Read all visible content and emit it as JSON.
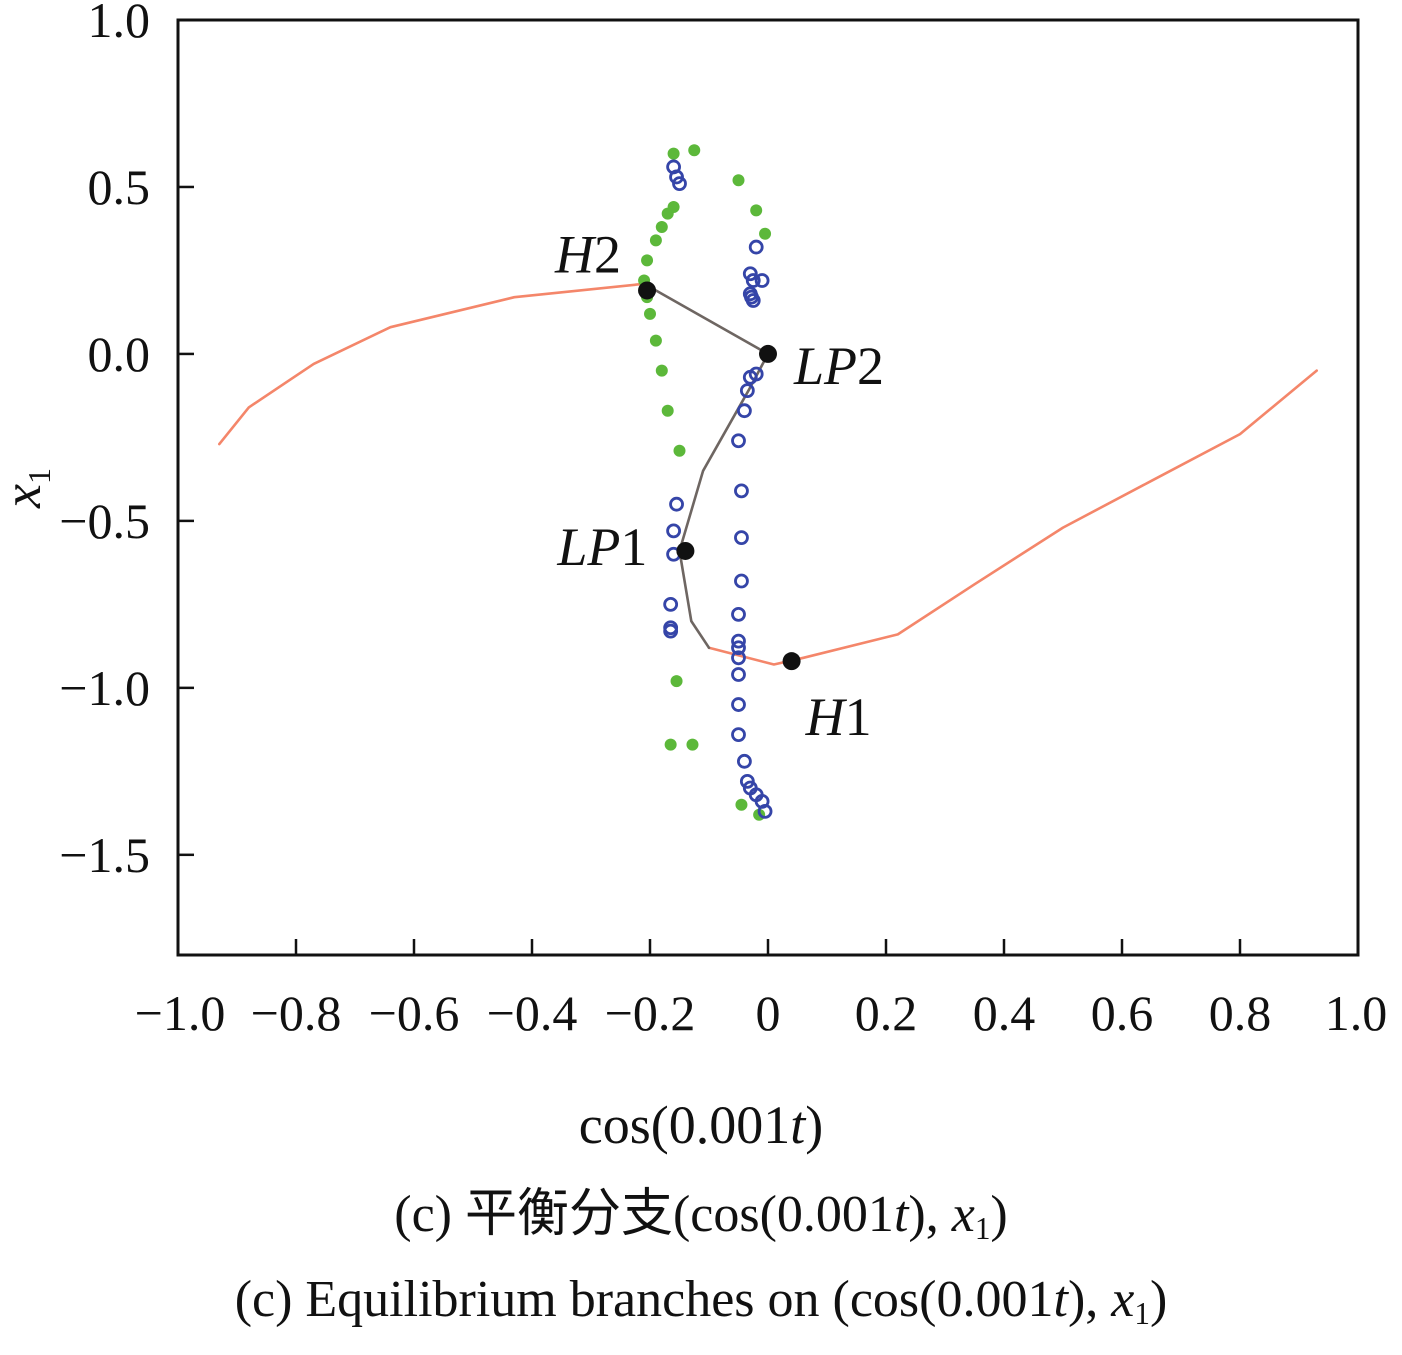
{
  "chart_data": {
    "type": "scatter",
    "xlabel": "cos(0.001t)",
    "ylabel": "x1",
    "xlim": [
      -1.0,
      1.0
    ],
    "ylim": [
      -1.8,
      1.0
    ],
    "x_ticks": [
      -1.0,
      -0.8,
      -0.6,
      -0.4,
      -0.2,
      0,
      0.2,
      0.4,
      0.6,
      0.8,
      1.0
    ],
    "x_tick_labels": [
      "−1.0",
      "−0.8",
      "−0.6",
      "−0.4",
      "−0.2",
      "0",
      "0.2",
      "0.4",
      "0.6",
      "0.8",
      "1.0"
    ],
    "y_ticks": [
      1.0,
      0.5,
      0.0,
      -0.5,
      -1.0,
      -1.5
    ],
    "y_tick_labels": [
      "1.0",
      "0.5",
      "0.0",
      "−0.5",
      "−1.0",
      "−1.5"
    ],
    "grid": false,
    "series": [
      {
        "style": "line",
        "color": "#f4866a",
        "x": [
          -0.93,
          -0.88,
          -0.77,
          -0.64,
          -0.43,
          -0.21
        ],
        "y": [
          -0.27,
          -0.16,
          -0.03,
          0.08,
          0.17,
          0.21
        ]
      },
      {
        "style": "line",
        "color": "#f4866a",
        "x": [
          -0.1,
          0.01,
          0.06,
          0.22,
          0.35,
          0.5,
          0.65,
          0.8,
          0.93
        ],
        "y": [
          -0.88,
          -0.93,
          -0.91,
          -0.84,
          -0.69,
          -0.52,
          -0.38,
          -0.24,
          -0.05
        ]
      },
      {
        "style": "line",
        "color": "#6e6662",
        "x": [
          -0.21,
          0.0,
          -0.03,
          -0.11,
          -0.15,
          -0.13,
          -0.1
        ],
        "y": [
          0.21,
          0.0,
          -0.1,
          -0.35,
          -0.59,
          -0.8,
          -0.88
        ]
      },
      {
        "style": "filled-dots",
        "color": "#5cb83a",
        "x": [
          -0.16,
          -0.125,
          -0.05,
          -0.02,
          -0.005,
          -0.16,
          -0.17,
          -0.18,
          -0.19,
          -0.205,
          -0.21,
          -0.205,
          -0.2,
          -0.19,
          -0.18,
          -0.17,
          -0.15,
          -0.14,
          -0.155,
          -0.165,
          -0.128,
          -0.045,
          -0.015
        ],
        "y": [
          0.6,
          0.61,
          0.52,
          0.43,
          0.36,
          0.44,
          0.42,
          0.38,
          0.34,
          0.28,
          0.22,
          0.17,
          0.12,
          0.04,
          -0.05,
          -0.17,
          -0.29,
          -0.59,
          -0.98,
          -1.17,
          -1.17,
          -1.35,
          -1.38
        ]
      },
      {
        "style": "open-circles",
        "color": "#3545a8",
        "x": [
          -0.16,
          -0.155,
          -0.15,
          -0.02,
          -0.025,
          -0.03,
          -0.01,
          -0.03,
          -0.028,
          -0.025,
          -0.02,
          -0.03,
          -0.035,
          -0.04,
          -0.05,
          -0.045,
          -0.045,
          -0.045,
          -0.05,
          -0.05,
          -0.05,
          -0.05,
          -0.05,
          -0.05,
          -0.05,
          -0.04,
          -0.035,
          -0.03,
          -0.02,
          -0.01,
          -0.005,
          -0.155,
          -0.16,
          -0.16,
          -0.165,
          -0.165,
          -0.165
        ],
        "y": [
          0.56,
          0.53,
          0.51,
          0.32,
          0.22,
          0.24,
          0.22,
          0.18,
          0.17,
          0.16,
          -0.06,
          -0.07,
          -0.11,
          -0.17,
          -0.26,
          -0.41,
          -0.55,
          -0.68,
          -0.78,
          -0.86,
          -0.88,
          -0.91,
          -0.96,
          -1.05,
          -1.14,
          -1.22,
          -1.28,
          -1.3,
          -1.32,
          -1.34,
          -1.37,
          -0.45,
          -0.53,
          -0.6,
          -0.75,
          -0.82,
          -0.83
        ]
      },
      {
        "style": "special-points",
        "color": "#111111",
        "x": [
          -0.205,
          0.0,
          -0.14,
          0.04
        ],
        "y": [
          0.19,
          0.0,
          -0.59,
          -0.92
        ]
      }
    ],
    "annotations": [
      {
        "text": "H2",
        "x": -0.205,
        "y": 0.19,
        "anchor": "upper-left"
      },
      {
        "text": "LP2",
        "x": 0.0,
        "y": 0.0,
        "anchor": "right"
      },
      {
        "text": "LP1",
        "x": -0.14,
        "y": -0.59,
        "anchor": "left"
      },
      {
        "text": "H1",
        "x": 0.04,
        "y": -0.92,
        "anchor": "below"
      }
    ]
  },
  "labels": {
    "xlabel_prefix": "cos(0.001",
    "xlabel_var": "t",
    "xlabel_suffix": ")",
    "ylabel_var": "x",
    "ylabel_sub": "1",
    "caption_cn_prefix": "(c)  平衡分支(cos(0.001",
    "caption_cn_var": "t",
    "caption_cn_mid": "), ",
    "caption_cn_x": "x",
    "caption_cn_sub": "1",
    "caption_cn_end": ")",
    "caption_en_prefix": "(c)  Equilibrium branches on (cos(0.001",
    "caption_en_var": "t",
    "caption_en_mid": "), ",
    "caption_en_x": "x",
    "caption_en_sub": "1",
    "caption_en_end": ")"
  }
}
